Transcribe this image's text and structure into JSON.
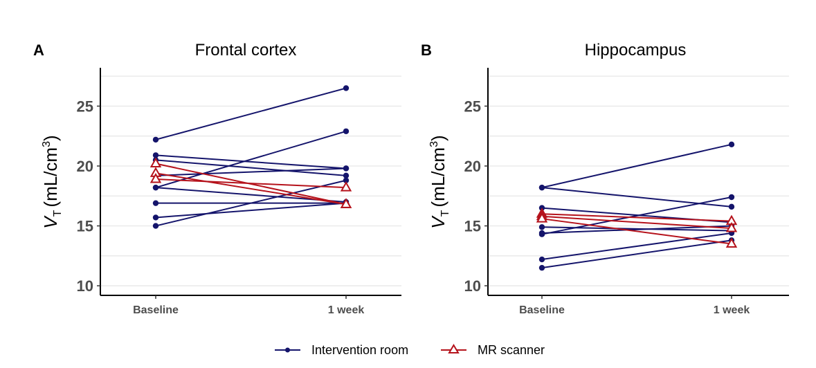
{
  "chart_data": [
    {
      "type": "line",
      "panel_letter": "A",
      "title": "Frontal cortex",
      "xlabel": "",
      "ylabel": "V_T (mL/cm^3)",
      "ylabel_parts": {
        "main": "V",
        "sub": "T",
        "unit": "(mL/cm",
        "sup": "3",
        "close": ")"
      },
      "categories": [
        "Baseline",
        "1 week"
      ],
      "ylim": [
        9.2,
        28.2
      ],
      "yticks": [
        10,
        15,
        20,
        25
      ],
      "ytick_labels": [
        "10",
        "15",
        "20",
        "25"
      ],
      "grid": true,
      "series": [
        {
          "name": "Intervention room",
          "values": [
            22.2,
            26.5
          ]
        },
        {
          "name": "Intervention room",
          "values": [
            20.9,
            19.8
          ]
        },
        {
          "name": "Intervention room",
          "values": [
            20.5,
            19.2
          ]
        },
        {
          "name": "Intervention room",
          "values": [
            19.2,
            19.8
          ]
        },
        {
          "name": "Intervention room",
          "values": [
            18.2,
            22.9
          ]
        },
        {
          "name": "Intervention room",
          "values": [
            18.2,
            17.0
          ]
        },
        {
          "name": "Intervention room",
          "values": [
            16.9,
            16.9
          ]
        },
        {
          "name": "Intervention room",
          "values": [
            15.7,
            16.9
          ]
        },
        {
          "name": "Intervention room",
          "values": [
            15.0,
            18.8
          ]
        },
        {
          "name": "MR scanner",
          "values": [
            20.2,
            16.8
          ]
        },
        {
          "name": "MR scanner",
          "values": [
            19.4,
            16.8
          ]
        },
        {
          "name": "MR scanner",
          "values": [
            18.9,
            18.2
          ]
        }
      ]
    },
    {
      "type": "line",
      "panel_letter": "B",
      "title": "Hippocampus",
      "xlabel": "",
      "ylabel": "V_T (mL/cm^3)",
      "ylabel_parts": {
        "main": "V",
        "sub": "T",
        "unit": "(mL/cm",
        "sup": "3",
        "close": ")"
      },
      "categories": [
        "Baseline",
        "1 week"
      ],
      "ylim": [
        9.2,
        28.2
      ],
      "yticks": [
        10,
        15,
        20,
        25
      ],
      "ytick_labels": [
        "10",
        "15",
        "20",
        "25"
      ],
      "grid": true,
      "series": [
        {
          "name": "Intervention room",
          "values": [
            18.2,
            21.8
          ]
        },
        {
          "name": "Intervention room",
          "values": [
            18.2,
            16.6
          ]
        },
        {
          "name": "Intervention room",
          "values": [
            16.5,
            15.3
          ]
        },
        {
          "name": "Intervention room",
          "values": [
            14.9,
            14.6
          ]
        },
        {
          "name": "Intervention room",
          "values": [
            14.4,
            15.0
          ]
        },
        {
          "name": "Intervention room",
          "values": [
            14.3,
            17.4
          ]
        },
        {
          "name": "Intervention room",
          "values": [
            12.2,
            14.4
          ]
        },
        {
          "name": "Intervention room",
          "values": [
            11.5,
            13.8
          ]
        },
        {
          "name": "MR scanner",
          "values": [
            16.0,
            15.4
          ]
        },
        {
          "name": "MR scanner",
          "values": [
            15.8,
            14.8
          ]
        },
        {
          "name": "MR scanner",
          "values": [
            15.6,
            13.5
          ]
        }
      ]
    }
  ],
  "legend": {
    "position": "bottom",
    "items": [
      {
        "label": "Intervention room",
        "color": "#14146b",
        "marker": "circle"
      },
      {
        "label": "MR scanner",
        "color": "#b5121b",
        "marker": "triangle-open"
      }
    ]
  },
  "colors": {
    "intervention": "#14146b",
    "mr": "#b5121b"
  }
}
